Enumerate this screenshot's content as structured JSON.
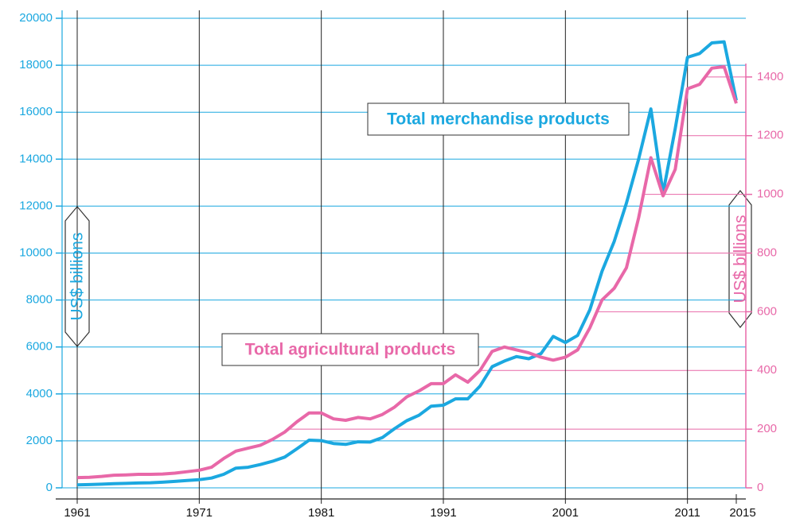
{
  "chart_data": {
    "type": "line",
    "x": [
      1961,
      1962,
      1963,
      1964,
      1965,
      1966,
      1967,
      1968,
      1969,
      1970,
      1971,
      1972,
      1973,
      1974,
      1975,
      1976,
      1977,
      1978,
      1979,
      1980,
      1981,
      1982,
      1983,
      1984,
      1985,
      1986,
      1987,
      1988,
      1989,
      1990,
      1991,
      1992,
      1993,
      1994,
      1995,
      1996,
      1997,
      1998,
      1999,
      2000,
      2001,
      2002,
      2003,
      2004,
      2005,
      2006,
      2007,
      2008,
      2009,
      2010,
      2011,
      2012,
      2013,
      2014,
      2015
    ],
    "series": [
      {
        "name": "Total merchandise products",
        "color": "#1ba8e0",
        "axis": "y",
        "values": [
          130,
          140,
          155,
          175,
          190,
          205,
          215,
          240,
          275,
          315,
          350,
          415,
          575,
          840,
          875,
          990,
          1130,
          1310,
          1660,
          2030,
          2010,
          1890,
          1850,
          1960,
          1950,
          2140,
          2520,
          2860,
          3090,
          3480,
          3520,
          3790,
          3790,
          4330,
          5160,
          5400,
          5590,
          5500,
          5720,
          6450,
          6190,
          6490,
          7580,
          9220,
          10500,
          12130,
          14000,
          16140,
          12550,
          15300,
          18340,
          18500,
          18950,
          19000,
          16500
        ]
      },
      {
        "name": "Total agricultural products",
        "color": "#e868a8",
        "axis": "y2",
        "values": [
          35,
          36,
          39,
          43,
          44,
          46,
          46,
          47,
          50,
          55,
          60,
          70,
          100,
          125,
          135,
          145,
          165,
          190,
          225,
          255,
          255,
          235,
          230,
          240,
          235,
          250,
          275,
          310,
          330,
          355,
          355,
          385,
          360,
          400,
          465,
          480,
          470,
          460,
          445,
          435,
          445,
          470,
          545,
          640,
          680,
          750,
          920,
          1125,
          995,
          1085,
          1360,
          1375,
          1430,
          1435,
          1310
        ]
      }
    ],
    "xlim": [
      1961,
      2015
    ],
    "xticks": [
      1961,
      1971,
      1981,
      1991,
      2001,
      2011,
      2015
    ],
    "ylim": [
      0,
      20000
    ],
    "yticks": [
      0,
      2000,
      4000,
      6000,
      8000,
      10000,
      12000,
      14000,
      16000,
      18000,
      20000
    ],
    "y2lim": [
      0,
      1600
    ],
    "y2ticks": [
      0,
      200,
      400,
      600,
      800,
      1000,
      1200,
      1400
    ],
    "ylabel": "US$ billions",
    "y2label": "US$ billions",
    "grid": true
  }
}
